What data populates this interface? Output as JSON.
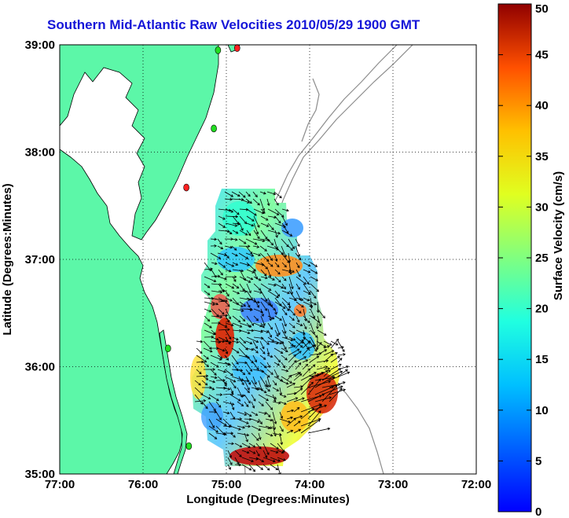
{
  "title": "Southern Mid-Atlantic Raw Velocities 2010/05/29 1900 GMT",
  "axes": {
    "xlabel": "Longitude (Degrees:Minutes)",
    "ylabel": "Latitude (Degrees:Minutes)",
    "xticks": [
      "77:00",
      "76:00",
      "75:00",
      "74:00",
      "73:00",
      "72:00"
    ],
    "yticks": [
      "39:00",
      "38:00",
      "37:00",
      "36:00",
      "35:00"
    ],
    "xlim": [
      -77,
      -72
    ],
    "ylim": [
      35,
      39
    ],
    "grid": "dotted"
  },
  "colorbar": {
    "label": "Surface Velocity (cm/s)",
    "ticks": [
      "50",
      "45",
      "40",
      "35",
      "30",
      "25",
      "20",
      "15",
      "10",
      "5",
      "0"
    ],
    "range": [
      0,
      50
    ],
    "colormap": "jet"
  },
  "colors": {
    "land": "#5cf7a8",
    "coast": "#000000",
    "bathymetry": "#8c8c8c",
    "title": "#1515d8",
    "station_active": "#22dd22",
    "station_inactive": "#ff2222"
  },
  "stations": [
    {
      "lon": -74.87,
      "lat": 38.97,
      "status": "inactive"
    },
    {
      "lon": -75.1,
      "lat": 38.95,
      "status": "active"
    },
    {
      "lon": -75.15,
      "lat": 38.22,
      "status": "active"
    },
    {
      "lon": -75.48,
      "lat": 37.67,
      "status": "inactive"
    },
    {
      "lon": -75.7,
      "lat": 36.17,
      "status": "active"
    },
    {
      "lon": -75.45,
      "lat": 35.26,
      "status": "active"
    }
  ]
}
